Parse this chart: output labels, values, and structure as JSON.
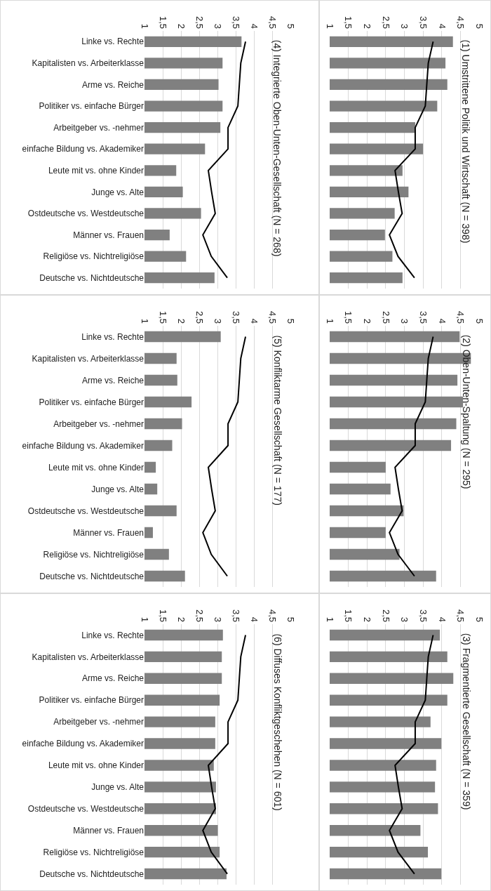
{
  "chart_data": [
    {
      "type": "bar",
      "orientation": "horizontal",
      "title": "(1) Umstrittene Politik und Wirtschaft (N = 398)",
      "categories": [
        null,
        null,
        null,
        null,
        null,
        null,
        null,
        null,
        null,
        null,
        null,
        null
      ],
      "series": [
        {
          "color": "#808080",
          "values": [
            4.3,
            4.1,
            4.15,
            3.88,
            3.29,
            3.5,
            2.95,
            3.11,
            2.74,
            2.48,
            2.68,
            2.95
          ]
        },
        {
          "type": "line",
          "color": "#000000",
          "values": [
            3.77,
            3.64,
            3.6,
            3.56,
            3.29,
            3.29,
            2.75,
            2.84,
            2.94,
            2.6,
            2.83,
            3.27
          ]
        }
      ],
      "xlim": [
        1,
        5
      ],
      "xticks": [
        1,
        {
          "value": 1.5,
          "label": "1,5"
        },
        2,
        {
          "value": 2.5,
          "label": "2,5"
        },
        3,
        {
          "value": 3.5,
          "label": "3,5"
        },
        4,
        {
          "value": 4.5,
          "label": "4,5"
        },
        5
      ],
      "grid": "x",
      "tick_labels": "x"
    },
    {
      "type": "bar",
      "orientation": "horizontal",
      "title": "(2) Oben-Unten-Spaltung (N = 295)",
      "categories": [
        null,
        null,
        null,
        null,
        null,
        null,
        null,
        null,
        null,
        null,
        null,
        null
      ],
      "series": [
        {
          "color": "#808080",
          "values": [
            4.48,
            4.78,
            4.42,
            4.57,
            4.39,
            4.25,
            2.5,
            2.63,
            2.98,
            2.5,
            2.87,
            3.85
          ]
        },
        {
          "type": "line",
          "color": "#000000",
          "values": [
            3.77,
            3.64,
            3.6,
            3.56,
            3.29,
            3.29,
            2.75,
            2.84,
            2.94,
            2.6,
            2.83,
            3.27
          ]
        }
      ],
      "xlim": [
        1,
        5
      ],
      "xticks": [
        1,
        {
          "value": 1.5,
          "label": "1,5"
        },
        2,
        {
          "value": 2.5,
          "label": "2,5"
        },
        3,
        {
          "value": 3.5,
          "label": "3,5"
        },
        4,
        {
          "value": 4.5,
          "label": "4,5"
        },
        5
      ],
      "grid": "x",
      "tick_labels": "x"
    },
    {
      "type": "bar",
      "orientation": "horizontal",
      "title": "(3) Fragmentierte Gesellschaft (N = 359)",
      "categories": [
        null,
        null,
        null,
        null,
        null,
        null,
        null,
        null,
        null,
        null,
        null,
        null
      ],
      "series": [
        {
          "color": "#808080",
          "values": [
            3.95,
            4.15,
            4.31,
            4.15,
            3.7,
            3.99,
            3.85,
            3.82,
            3.9,
            3.43,
            3.63,
            3.99
          ]
        },
        {
          "type": "line",
          "color": "#000000",
          "values": [
            3.77,
            3.64,
            3.6,
            3.56,
            3.29,
            3.29,
            2.75,
            2.84,
            2.94,
            2.6,
            2.83,
            3.27
          ]
        }
      ],
      "xlim": [
        1,
        5
      ],
      "xticks": [
        1,
        {
          "value": 1.5,
          "label": "1,5"
        },
        2,
        {
          "value": 2.5,
          "label": "2,5"
        },
        3,
        {
          "value": 3.5,
          "label": "3,5"
        },
        4,
        {
          "value": 4.5,
          "label": "4,5"
        },
        5
      ],
      "grid": "x",
      "tick_labels": "x"
    },
    {
      "type": "bar",
      "orientation": "horizontal",
      "title": "(4) Integrierte Oben-Unten-Gesellschaft (N = 268)",
      "categories": [
        "Linke vs. Rechte",
        "Kapitalisten vs. Arbeiterklasse",
        "Arme vs. Reiche",
        "Politiker vs. einfache Bürger",
        "Arbeitgeber vs. -nehmer",
        "einfache Bildung vs. Akademiker",
        "Leute mit vs. ohne Kinder",
        "Junge vs. Alte",
        "Ostdeutsche vs. Westdeutsche",
        "Männer vs. Frauen",
        "Religiöse vs. Nichtreligiöse",
        "Deutsche vs. Nichtdeutsche"
      ],
      "series": [
        {
          "color": "#808080",
          "values": [
            3.66,
            3.14,
            3.03,
            3.14,
            3.08,
            2.66,
            1.87,
            2.05,
            2.55,
            1.69,
            2.14,
            2.92
          ]
        },
        {
          "type": "line",
          "color": "#000000",
          "values": [
            3.77,
            3.64,
            3.6,
            3.56,
            3.29,
            3.29,
            2.75,
            2.84,
            2.94,
            2.6,
            2.83,
            3.27
          ]
        }
      ],
      "xlim": [
        1,
        5
      ],
      "xticks": [
        1,
        {
          "value": 1.5,
          "label": "1,5"
        },
        2,
        {
          "value": 2.5,
          "label": "2,5"
        },
        3,
        {
          "value": 3.5,
          "label": "3,5"
        },
        4,
        {
          "value": 4.5,
          "label": "4,5"
        },
        5
      ],
      "grid": "x"
    },
    {
      "type": "bar",
      "orientation": "horizontal",
      "title": "(5) Konfliktarme Gesellschaft (N = 177)",
      "categories": [
        "Linke vs. Rechte",
        "Kapitalisten vs. Arbeiterklasse",
        "Arme vs. Reiche",
        "Politiker vs. einfache Bürger",
        "Arbeitgeber vs. -nehmer",
        "einfache Bildung vs. Akademiker",
        "Leute mit vs. ohne Kinder",
        "Junge vs. Alte",
        "Ostdeutsche vs. Westdeutsche",
        "Männer vs. Frauen",
        "Religiöse vs. Nichtreligiöse",
        "Deutsche vs. Nichtdeutsche"
      ],
      "series": [
        {
          "color": "#808080",
          "values": [
            3.09,
            1.88,
            1.9,
            2.29,
            2.03,
            1.76,
            1.31,
            1.35,
            1.88,
            1.23,
            1.67,
            2.11
          ]
        },
        {
          "type": "line",
          "color": "#000000",
          "values": [
            3.77,
            3.64,
            3.6,
            3.56,
            3.29,
            3.29,
            2.75,
            2.84,
            2.94,
            2.6,
            2.83,
            3.27
          ]
        }
      ],
      "xlim": [
        1,
        5
      ],
      "xticks": [
        1,
        {
          "value": 1.5,
          "label": "1,5"
        },
        2,
        {
          "value": 2.5,
          "label": "2,5"
        },
        3,
        {
          "value": 3.5,
          "label": "3,5"
        },
        4,
        {
          "value": 4.5,
          "label": "4,5"
        },
        5
      ],
      "grid": "x"
    },
    {
      "type": "bar",
      "orientation": "horizontal",
      "title": "(6) Diffuses Konfliktgeschehen (N = 601)",
      "categories": [
        "Linke vs. Rechte",
        "Kapitalisten vs. Arbeiterklasse",
        "Arme vs. Reiche",
        "Politiker vs. einfache Bürger",
        "Arbeitgeber vs. -nehmer",
        "einfache Bildung vs. Akademiker",
        "Leute mit vs. ohne Kinder",
        "Junge vs. Alte",
        "Ostdeutsche vs. Westdeutsche",
        "Männer vs. Frauen",
        "Religiöse vs. Nichtreligiöse",
        "Deutsche vs. Nichtdeutsche"
      ],
      "series": [
        {
          "color": "#808080",
          "values": [
            3.15,
            3.12,
            3.12,
            3.06,
            2.94,
            2.94,
            2.9,
            2.96,
            2.96,
            3.01,
            3.06,
            3.25
          ]
        },
        {
          "type": "line",
          "color": "#000000",
          "values": [
            3.77,
            3.64,
            3.6,
            3.56,
            3.29,
            3.29,
            2.75,
            2.84,
            2.94,
            2.6,
            2.83,
            3.27
          ]
        }
      ],
      "xlim": [
        1,
        5
      ],
      "xticks": [
        1,
        {
          "value": 1.5,
          "label": "1,5"
        },
        2,
        {
          "value": 2.5,
          "label": "2,5"
        },
        3,
        {
          "value": 3.5,
          "label": "3,5"
        },
        4,
        {
          "value": 4.5,
          "label": "4,5"
        },
        5
      ],
      "grid": "x"
    }
  ]
}
